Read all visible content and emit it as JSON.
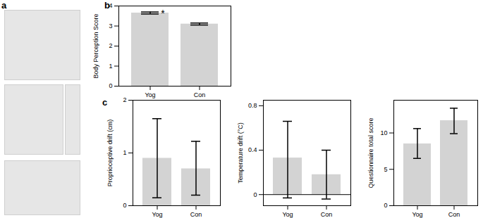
{
  "chart_data": [
    {
      "type": "image",
      "annotations": [
        {
          "text": "a"
        }
      ]
    },
    {
      "type": "bar",
      "y_label": "Body Perception Score",
      "categories": [
        "Yog",
        "Con"
      ],
      "values": [
        3.65,
        3.1
      ],
      "error_bars": [
        [
          3.6,
          3.7
        ],
        [
          3.05,
          3.15
        ]
      ],
      "color": "#d3d3d3",
      "ylim": [
        0,
        4
      ],
      "yticks": [
        0,
        1,
        2,
        3,
        4
      ],
      "annotations": [
        {
          "text": "b"
        },
        {
          "text": "*",
          "category": "Yog",
          "y": 3.72
        }
      ]
    },
    {
      "type": "bar",
      "y_label": "Proprioceptive drift (cm)",
      "categories": [
        "Yog",
        "Con"
      ],
      "values": [
        0.9,
        0.7
      ],
      "error_bars": [
        [
          0.15,
          1.65
        ],
        [
          0.2,
          1.22
        ]
      ],
      "color": "#d3d3d3",
      "ylim": [
        0,
        2
      ],
      "yticks": [
        0,
        1,
        2
      ],
      "annotations": [
        {
          "text": "c"
        }
      ]
    },
    {
      "type": "bar",
      "y_label": "Temperature drift (°C)",
      "categories": [
        "Yog",
        "Con"
      ],
      "values": [
        0.33,
        0.18
      ],
      "error_bars": [
        [
          -0.03,
          0.66
        ],
        [
          -0.04,
          0.4
        ]
      ],
      "color": "#d3d3d3",
      "ylim": [
        -0.1,
        0.85
      ],
      "yticks": [
        0,
        0.4,
        0.8
      ]
    },
    {
      "type": "bar",
      "y_label": "Questionnaire total score",
      "categories": [
        "Yog",
        "Con"
      ],
      "values": [
        8.5,
        11.7
      ],
      "error_bars": [
        [
          6.5,
          10.6
        ],
        [
          9.9,
          13.4
        ]
      ],
      "color": "#d3d3d3",
      "ylim": [
        0,
        14.5
      ],
      "yticks": [
        0,
        5,
        10
      ]
    }
  ]
}
